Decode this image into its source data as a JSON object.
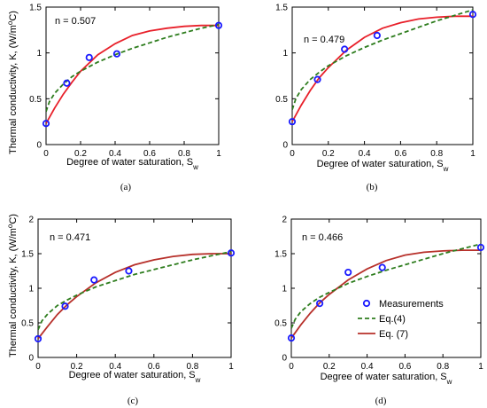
{
  "chart_data": [
    {
      "id": "a",
      "type": "scatter",
      "subfigure_label": "(a)",
      "annotation": "n = 0.507",
      "xlabel": "Degree of water saturation, S",
      "xlabel_sub": "w",
      "ylabel": "Thermal conductivity, K, (W/m",
      "ylabel_sup": "o",
      "ylabel_end": "C)",
      "xlim": [
        0,
        1
      ],
      "ylim": [
        0,
        1.5
      ],
      "xticks": [
        0,
        0.2,
        0.4,
        0.6,
        0.8,
        1
      ],
      "xtick_labels": [
        "0",
        "0.2",
        "0.4",
        "0.6",
        "0.8",
        "1"
      ],
      "yticks": [
        0,
        0.5,
        1,
        1.5
      ],
      "ytick_labels": [
        "0",
        "0.5",
        "1",
        "1.5"
      ],
      "series": [
        {
          "name": "Measurements",
          "kind": "points",
          "color": "#1a1aff",
          "x": [
            0,
            0.12,
            0.25,
            0.41,
            1.0
          ],
          "y": [
            0.23,
            0.67,
            0.95,
            0.99,
            1.3
          ]
        },
        {
          "name": "Eq.(4)",
          "kind": "line",
          "style": "dashed",
          "color": "#2e7d1e",
          "x": [
            0,
            0.02,
            0.05,
            0.1,
            0.15,
            0.2,
            0.3,
            0.4,
            0.5,
            0.6,
            0.7,
            0.8,
            0.9,
            1.0
          ],
          "y": [
            0.36,
            0.47,
            0.56,
            0.66,
            0.74,
            0.8,
            0.9,
            0.98,
            1.05,
            1.11,
            1.17,
            1.22,
            1.27,
            1.31
          ]
        },
        {
          "name": "Eq. (7)",
          "kind": "line",
          "style": "solid",
          "color": "#e8202a",
          "x": [
            0,
            0.05,
            0.1,
            0.15,
            0.2,
            0.3,
            0.4,
            0.5,
            0.6,
            0.7,
            0.8,
            0.9,
            1.0
          ],
          "y": [
            0.23,
            0.4,
            0.55,
            0.68,
            0.8,
            0.98,
            1.1,
            1.19,
            1.24,
            1.27,
            1.29,
            1.3,
            1.3
          ]
        }
      ]
    },
    {
      "id": "b",
      "type": "scatter",
      "subfigure_label": "(b)",
      "annotation": "n = 0.479",
      "xlabel": "Degree of water saturation, S",
      "xlabel_sub": "w",
      "xlim": [
        0,
        1
      ],
      "ylim": [
        0,
        1.5
      ],
      "xticks": [
        0,
        0.2,
        0.4,
        0.6,
        0.8,
        1
      ],
      "xtick_labels": [
        "0",
        "0.2",
        "0.4",
        "0.6",
        "0.8",
        "1"
      ],
      "yticks": [
        0,
        0.5,
        1,
        1.5
      ],
      "ytick_labels": [
        "0",
        "0.5",
        "1",
        "1.5"
      ],
      "series": [
        {
          "name": "Measurements",
          "kind": "points",
          "color": "#1a1aff",
          "x": [
            0,
            0.14,
            0.29,
            0.47,
            1.0
          ],
          "y": [
            0.25,
            0.71,
            1.04,
            1.19,
            1.42
          ]
        },
        {
          "name": "Eq.(4)",
          "kind": "line",
          "style": "dashed",
          "color": "#2e7d1e",
          "x": [
            0,
            0.02,
            0.05,
            0.1,
            0.15,
            0.2,
            0.3,
            0.4,
            0.5,
            0.6,
            0.7,
            0.8,
            0.9,
            1.0
          ],
          "y": [
            0.38,
            0.5,
            0.6,
            0.71,
            0.79,
            0.86,
            0.97,
            1.06,
            1.14,
            1.21,
            1.28,
            1.35,
            1.41,
            1.47
          ]
        },
        {
          "name": "Eq. (7)",
          "kind": "line",
          "style": "solid",
          "color": "#e8202a",
          "x": [
            0,
            0.05,
            0.1,
            0.15,
            0.2,
            0.3,
            0.4,
            0.5,
            0.6,
            0.7,
            0.8,
            0.9,
            1.0
          ],
          "y": [
            0.25,
            0.43,
            0.59,
            0.73,
            0.84,
            1.03,
            1.17,
            1.27,
            1.33,
            1.37,
            1.39,
            1.4,
            1.4
          ]
        }
      ]
    },
    {
      "id": "c",
      "type": "scatter",
      "subfigure_label": "(c)",
      "annotation": "n = 0.471",
      "xlabel": "Degree of water saturation, S",
      "xlabel_sub": "w",
      "ylabel": "Thermal conductivity, K, (W/m",
      "ylabel_sup": "o",
      "ylabel_end": "C)",
      "xlim": [
        0,
        1
      ],
      "ylim": [
        0,
        2
      ],
      "xticks": [
        0,
        0.2,
        0.4,
        0.6,
        0.8,
        1
      ],
      "xtick_labels": [
        "0",
        "0.2",
        "0.4",
        "0.6",
        "0.8",
        "1"
      ],
      "yticks": [
        0,
        0.5,
        1,
        1.5,
        2
      ],
      "ytick_labels": [
        "0",
        "0.5",
        "1",
        "1.5",
        "2"
      ],
      "series": [
        {
          "name": "Measurements",
          "kind": "points",
          "color": "#1a1aff",
          "x": [
            0,
            0.14,
            0.29,
            0.47,
            1.0
          ],
          "y": [
            0.27,
            0.74,
            1.12,
            1.25,
            1.51
          ]
        },
        {
          "name": "Eq.(4)",
          "kind": "line",
          "style": "dashed",
          "color": "#2e7d1e",
          "x": [
            0,
            0.02,
            0.05,
            0.1,
            0.15,
            0.2,
            0.3,
            0.4,
            0.5,
            0.6,
            0.7,
            0.8,
            0.9,
            1.0
          ],
          "y": [
            0.4,
            0.53,
            0.63,
            0.75,
            0.83,
            0.9,
            1.02,
            1.11,
            1.2,
            1.27,
            1.34,
            1.41,
            1.47,
            1.53
          ]
        },
        {
          "name": "Eq. (7)",
          "kind": "line",
          "style": "solid",
          "color": "#b7302a",
          "x": [
            0,
            0.05,
            0.1,
            0.15,
            0.2,
            0.3,
            0.4,
            0.5,
            0.6,
            0.7,
            0.8,
            0.9,
            1.0
          ],
          "y": [
            0.27,
            0.45,
            0.62,
            0.76,
            0.88,
            1.08,
            1.23,
            1.34,
            1.41,
            1.46,
            1.49,
            1.5,
            1.5
          ]
        }
      ]
    },
    {
      "id": "d",
      "type": "scatter",
      "subfigure_label": "(d)",
      "annotation": "n = 0.466",
      "xlabel": "Degree of water saturation, S",
      "xlabel_sub": "w",
      "xlim": [
        0,
        1
      ],
      "ylim": [
        0,
        2
      ],
      "xticks": [
        0,
        0.2,
        0.4,
        0.6,
        0.8,
        1
      ],
      "xtick_labels": [
        "0",
        "0.2",
        "0.4",
        "0.6",
        "0.8",
        "1"
      ],
      "yticks": [
        0,
        0.5,
        1,
        1.5,
        2
      ],
      "ytick_labels": [
        "0",
        "0.5",
        "1",
        "1.5",
        "2"
      ],
      "legend": {
        "position": "lower-right",
        "entries": [
          "Measurements",
          "Eq.(4)",
          "Eq. (7)"
        ]
      },
      "series": [
        {
          "name": "Measurements",
          "kind": "points",
          "color": "#1a1aff",
          "x": [
            0,
            0.15,
            0.3,
            0.48,
            1.0
          ],
          "y": [
            0.28,
            0.78,
            1.23,
            1.3,
            1.59
          ]
        },
        {
          "name": "Eq.(4)",
          "kind": "line",
          "style": "dashed",
          "color": "#2e7d1e",
          "x": [
            0,
            0.02,
            0.05,
            0.1,
            0.15,
            0.2,
            0.3,
            0.4,
            0.5,
            0.6,
            0.7,
            0.8,
            0.9,
            1.0
          ],
          "y": [
            0.42,
            0.55,
            0.66,
            0.78,
            0.87,
            0.94,
            1.07,
            1.17,
            1.26,
            1.34,
            1.42,
            1.5,
            1.57,
            1.64
          ]
        },
        {
          "name": "Eq. (7)",
          "kind": "line",
          "style": "solid",
          "color": "#b7302a",
          "x": [
            0,
            0.05,
            0.1,
            0.15,
            0.2,
            0.3,
            0.4,
            0.5,
            0.6,
            0.7,
            0.8,
            0.9,
            1.0
          ],
          "y": [
            0.28,
            0.47,
            0.64,
            0.79,
            0.91,
            1.12,
            1.28,
            1.4,
            1.48,
            1.52,
            1.54,
            1.55,
            1.55
          ]
        }
      ]
    }
  ]
}
